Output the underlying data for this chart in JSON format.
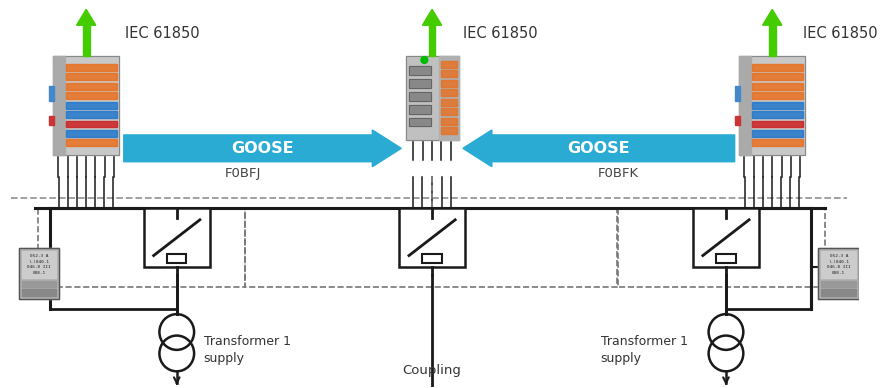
{
  "background_color": "#ffffff",
  "goose_color": "#29ABD4",
  "goose_label": "GOOSE",
  "iec_label": "IEC 61850",
  "arrow_green": "#44CC00",
  "line_color": "#1a1a1a",
  "dashed_color": "#666666",
  "label_f0bfj": "F0BFJ",
  "label_f0bfk": "F0BFK",
  "label_transformer1": "Transformer 1\nsupply",
  "label_transformer2": "Transformer 1\nsupply",
  "label_coupling": "Coupling",
  "fig_width": 8.9,
  "fig_height": 3.88,
  "dpi": 100
}
